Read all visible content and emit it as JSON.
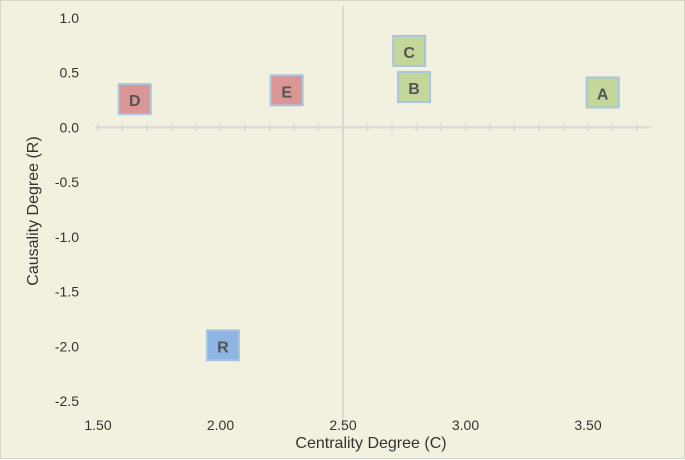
{
  "chart_data": {
    "type": "scatter",
    "title": "",
    "xlabel": "Centrality Degree (C)",
    "ylabel": "Causality Degree (R)",
    "xlim": [
      1.5,
      3.75
    ],
    "ylim": [
      -2.5,
      1.0
    ],
    "x_ticks": [
      1.5,
      2.0,
      2.5,
      3.0,
      3.5
    ],
    "x_tick_labels": [
      "1.50",
      "2.00",
      "2.50",
      "3.00",
      "3.50"
    ],
    "y_ticks": [
      1.0,
      0.5,
      0.0,
      -0.5,
      -1.0,
      -1.5,
      -2.0,
      -2.5
    ],
    "y_tick_labels": [
      "1.0",
      "0.5",
      "0.0",
      "-0.5",
      "-1.0",
      "-1.5",
      "-2.0",
      "-2.5"
    ],
    "grid": false,
    "points": [
      {
        "label": "A",
        "x": 3.56,
        "y": 0.31,
        "color": "#c4d79b"
      },
      {
        "label": "B",
        "x": 2.79,
        "y": 0.36,
        "color": "#c4d79b"
      },
      {
        "label": "C",
        "x": 2.77,
        "y": 0.69,
        "color": "#c4d79b"
      },
      {
        "label": "D",
        "x": 1.65,
        "y": 0.25,
        "color": "#da9694"
      },
      {
        "label": "E",
        "x": 2.27,
        "y": 0.33,
        "color": "#da9694"
      },
      {
        "label": "R",
        "x": 2.01,
        "y": -2.0,
        "color": "#8db4e2"
      }
    ],
    "marker_border": "#a9c4df",
    "background": "#f2f0de",
    "axis_color": "#d9d9d9"
  }
}
